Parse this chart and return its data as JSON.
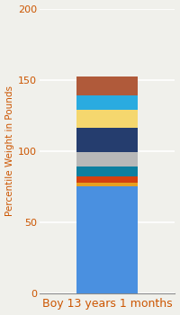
{
  "category": "Boy 13 years 1 months",
  "ylabel": "Percentile Weight in Pounds",
  "ylim": [
    0,
    200
  ],
  "yticks": [
    0,
    50,
    100,
    150,
    200
  ],
  "background_color": "#f0f0eb",
  "segments": [
    {
      "value": 75,
      "color": "#4a90e0"
    },
    {
      "value": 3,
      "color": "#e8a020"
    },
    {
      "value": 4,
      "color": "#d44010"
    },
    {
      "value": 7,
      "color": "#0d7fa0"
    },
    {
      "value": 10,
      "color": "#b8b8b8"
    },
    {
      "value": 17,
      "color": "#253d6e"
    },
    {
      "value": 13,
      "color": "#f5d76e"
    },
    {
      "value": 10,
      "color": "#2aabe0"
    },
    {
      "value": 13,
      "color": "#b05a3a"
    }
  ],
  "bar_width": 0.45,
  "ylabel_fontsize": 7.5,
  "tick_fontsize": 8,
  "xlabel_fontsize": 9,
  "grid_color": "#ffffff",
  "tick_color": "#cc5500",
  "xlabel_color": "#cc5500",
  "axis_line_color": "#888888"
}
